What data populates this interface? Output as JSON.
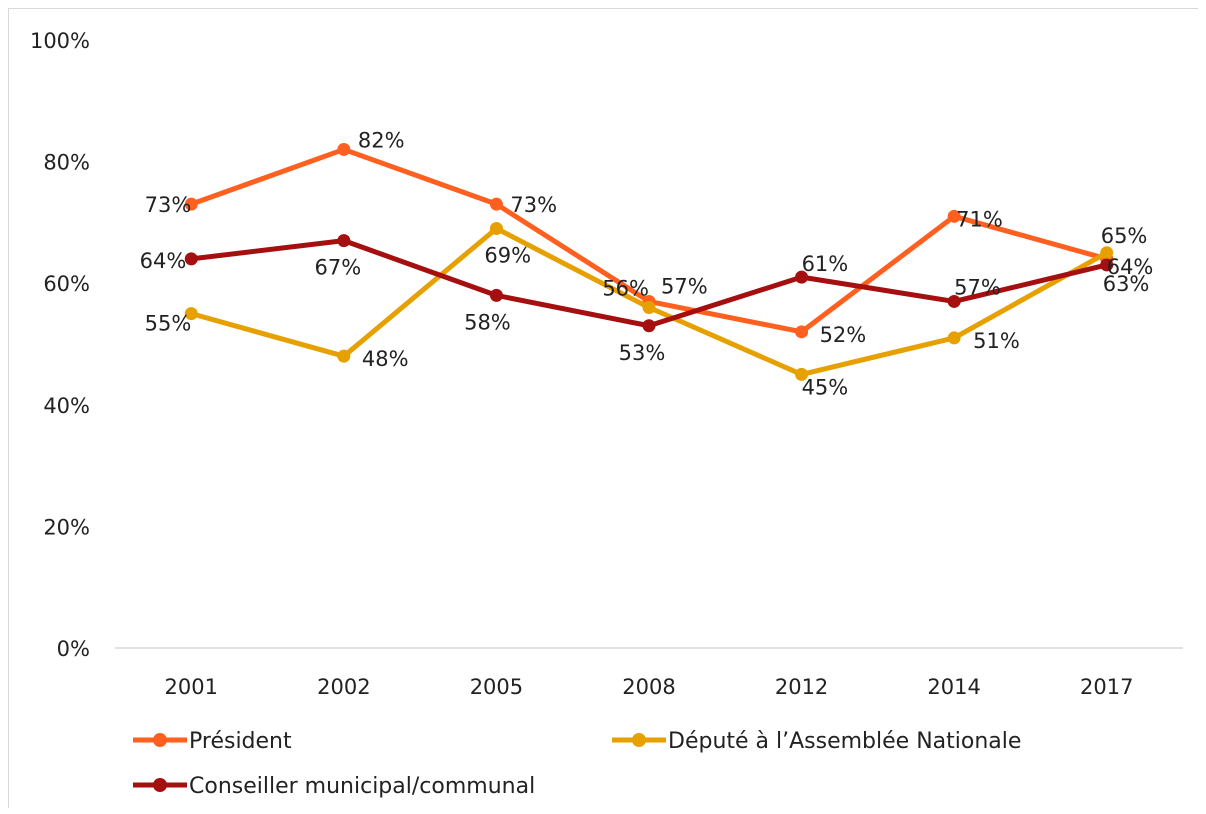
{
  "chart_data": {
    "type": "line",
    "categories": [
      "2001",
      "2002",
      "2005",
      "2008",
      "2012",
      "2014",
      "2017"
    ],
    "y_ticks": [
      "0%",
      "20%",
      "40%",
      "60%",
      "80%",
      "100%"
    ],
    "ylim": [
      0,
      100
    ],
    "y_unit": "%",
    "grid": false,
    "legend_position": "bottom",
    "series": [
      {
        "name": "Président",
        "color": "#FF5F1F",
        "values": [
          73,
          82,
          73,
          57,
          52,
          71,
          64
        ],
        "labels": [
          "73%",
          "82%",
          "73%",
          "57%",
          "52%",
          "71%",
          "64%"
        ]
      },
      {
        "name": "Député à l’Assemblée Nationale",
        "color": "#E6A100",
        "values": [
          55,
          48,
          69,
          56,
          45,
          51,
          65
        ],
        "labels": [
          "55%",
          "48%",
          "69%",
          "56%",
          "45%",
          "51%",
          "65%"
        ]
      },
      {
        "name": "Conseiller municipal/communal",
        "color": "#A50F0F",
        "values": [
          64,
          67,
          58,
          53,
          61,
          57,
          63
        ],
        "labels": [
          "64%",
          "67%",
          "58%",
          "53%",
          "61%",
          "57%",
          "63%"
        ]
      }
    ]
  }
}
